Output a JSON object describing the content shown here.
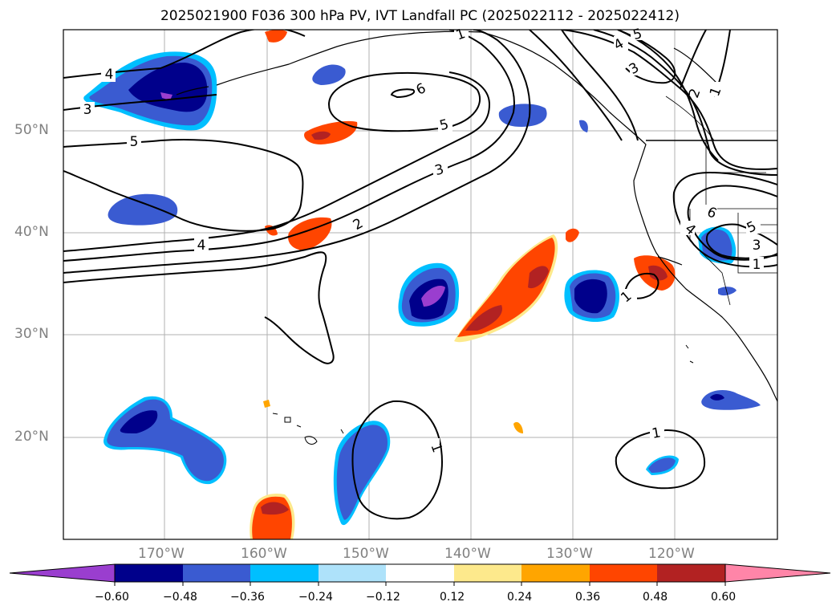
{
  "title": "2025021900 F036 300 hPa PV, IVT Landfall PC (2025022112 - 2025022412)",
  "lat_ticks": [
    "50°N",
    "40°N",
    "30°N",
    "20°N"
  ],
  "lon_ticks": [
    "170°W",
    "160°W",
    "150°W",
    "140°W",
    "130°W",
    "120°W"
  ],
  "contour_labels": [
    "1",
    "5",
    "4",
    "3",
    "6",
    "5",
    "4",
    "5",
    "3",
    "2",
    "4",
    "3",
    "2",
    "1",
    "6",
    "4",
    "5",
    "3",
    "1",
    "1",
    "1",
    "1"
  ],
  "colorbar": {
    "tick_labels": [
      "−0.60",
      "−0.48",
      "−0.36",
      "−0.24",
      "−0.12",
      "0.12",
      "0.24",
      "0.36",
      "0.48",
      "0.60"
    ],
    "colors": [
      "#9a3ecf",
      "#00008b",
      "#3a5bd1",
      "#00bfff",
      "#aee2fa",
      "#ffffff",
      "#fde98c",
      "#ffa500",
      "#ff4500",
      "#b22222",
      "#ff85a8"
    ]
  }
}
